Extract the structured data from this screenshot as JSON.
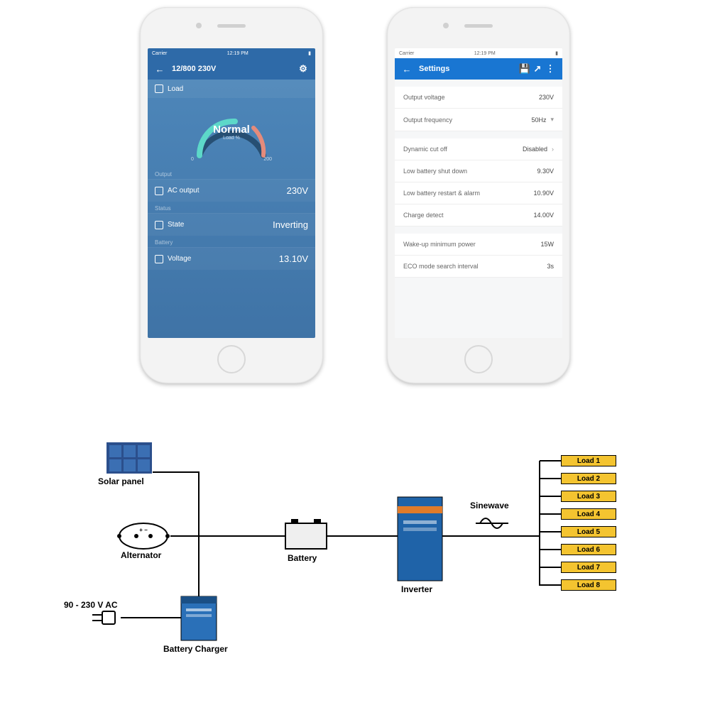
{
  "statusbar": {
    "carrier": "Carrier",
    "time": "12:19 PM"
  },
  "phone1": {
    "nav_title": "12/800 230V",
    "load_label": "Load",
    "gauge": {
      "status": "Normal",
      "sub": "Load %",
      "min": "0",
      "max": "200",
      "arc_color_low": "#5dd8c9",
      "arc_color_high": "#e58b7b"
    },
    "sections": {
      "output": "Output",
      "status": "Status",
      "battery": "Battery"
    },
    "rows": {
      "ac_output_label": "AC output",
      "ac_output_value": "230V",
      "state_label": "State",
      "state_value": "Inverting",
      "voltage_label": "Voltage",
      "voltage_value": "13.10V"
    },
    "colors": {
      "nav": "#2e6aa8",
      "body_top": "#4d86b9",
      "body_bottom": "#3f73a6"
    }
  },
  "phone2": {
    "nav_title": "Settings",
    "rows": [
      {
        "k": "Output voltage",
        "v": "230V"
      },
      {
        "k": "Output frequency",
        "v": "50Hz",
        "dropdown": true
      }
    ],
    "rows2": [
      {
        "k": "Dynamic cut off",
        "v": "Disabled",
        "chev": true
      },
      {
        "k": "Low battery shut down",
        "v": "9.30V"
      },
      {
        "k": "Low battery restart & alarm",
        "v": "10.90V"
      },
      {
        "k": "Charge detect",
        "v": "14.00V"
      }
    ],
    "rows3": [
      {
        "k": "Wake-up minimum power",
        "v": "15W"
      },
      {
        "k": "ECO mode search interval",
        "v": "3s"
      }
    ],
    "colors": {
      "nav": "#1976d2"
    }
  },
  "diagram": {
    "labels": {
      "solar": "Solar panel",
      "alternator": "Alternator",
      "ac_in": "90 - 230 V AC",
      "charger": "Battery Charger",
      "battery": "Battery",
      "inverter": "Inverter",
      "sinewave": "Sinewave"
    },
    "loads": [
      "Load 1",
      "Load 2",
      "Load 3",
      "Load 4",
      "Load 5",
      "Load 6",
      "Load 7",
      "Load 8"
    ],
    "colors": {
      "wire": "#000000",
      "solar_frame": "#2b4f8c",
      "solar_cell": "#3b6fb3",
      "battery_body": "#efefef",
      "charger_body": "#2a70b8",
      "inverter_body": "#1f63a8",
      "inverter_stripe": "#e07b2a",
      "load_fill": "#f4c430"
    }
  }
}
